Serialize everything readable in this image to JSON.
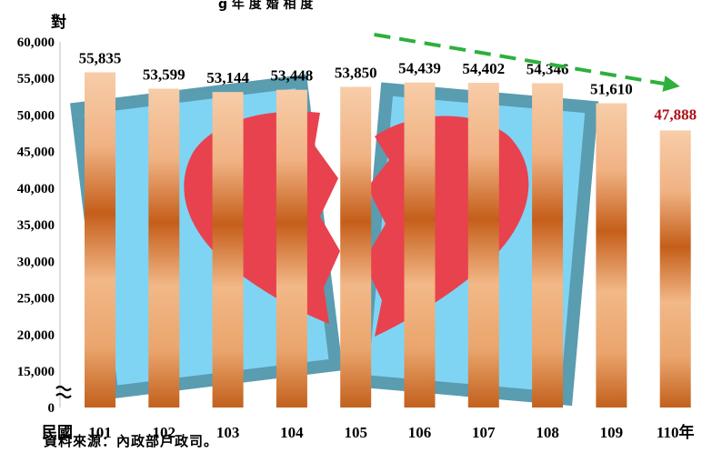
{
  "chart_data": {
    "type": "bar",
    "unit_label": "對",
    "x_prefix": "民國",
    "categories": [
      "101",
      "102",
      "103",
      "104",
      "105",
      "106",
      "107",
      "108",
      "109",
      "110年"
    ],
    "values": [
      55835,
      53599,
      53144,
      53448,
      53850,
      54439,
      54402,
      54346,
      51610,
      47888
    ],
    "value_labels": [
      "55,835",
      "53,599",
      "53,144",
      "53,448",
      "53,850",
      "54,439",
      "54,402",
      "54,346",
      "51,610",
      "47,888"
    ],
    "y_ticks": [
      "0",
      "15,000",
      "20,000",
      "25,000",
      "30,000",
      "35,000",
      "40,000",
      "45,000",
      "50,000",
      "55,000",
      "60,000"
    ],
    "y_tick_values": [
      0,
      15000,
      20000,
      25000,
      30000,
      35000,
      40000,
      45000,
      50000,
      55000,
      60000
    ],
    "axis_break": true,
    "highlight_index": 9,
    "colors": {
      "bar_light": "#f6c8a0",
      "bar_dark": "#c8661e",
      "highlight_label": "#b0101a",
      "trend_arrow": "#2db03c",
      "photo_frame": "#5a9cb0",
      "photo_blue": "#7fd4f4",
      "heart": "#e8424e"
    },
    "trend_arrow": {
      "from_index": 6,
      "to_index": 9,
      "style": "dashed"
    }
  },
  "source_note": "資料來源：內政部戶政司。",
  "title_partial": "g 年 度 婚 相 度"
}
